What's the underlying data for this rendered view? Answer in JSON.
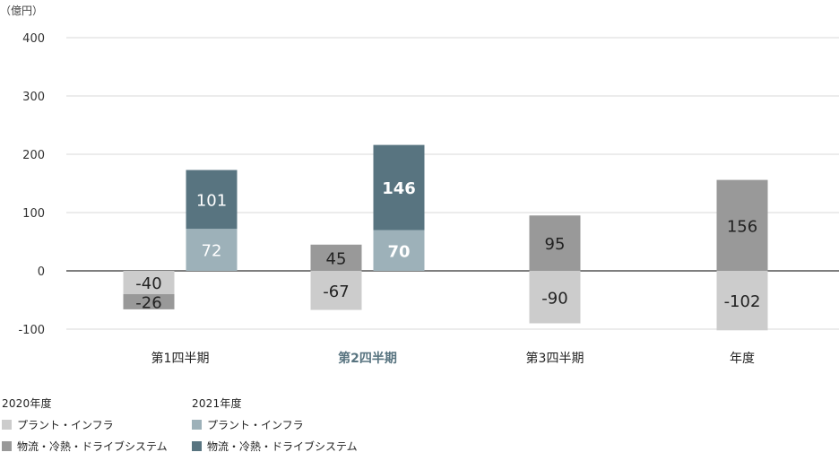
{
  "chart_data": {
    "type": "bar",
    "unit_label": "（億円）",
    "categories": [
      "第1四半期",
      "第2四半期",
      "第3四半期",
      "年度"
    ],
    "highlight_category": "第2四半期",
    "ylim": [
      -100,
      400
    ],
    "yticks": [
      -100,
      0,
      100,
      200,
      300,
      400
    ],
    "grid": true,
    "groups": [
      {
        "label": "2020年度",
        "series": [
          {
            "name": "プラント・インフラ",
            "color": "#cccccc",
            "values": [
              -40,
              -67,
              -90,
              -102
            ]
          },
          {
            "name": "物流・冷熱・ドライブシステム",
            "color": "#999999",
            "values": [
              -26,
              45,
              95,
              156
            ]
          }
        ]
      },
      {
        "label": "2021年度",
        "series": [
          {
            "name": "プラント・インフラ",
            "color": "#9db1b9",
            "values": [
              72,
              70,
              null,
              null
            ]
          },
          {
            "name": "物流・冷熱・ドライブシステム",
            "color": "#587480",
            "values": [
              101,
              146,
              null,
              null
            ]
          }
        ]
      }
    ],
    "bold_labels": {
      "group": 1,
      "category_index": 1
    },
    "legend_position": "bottom-left"
  },
  "colors": {
    "highlight_text": "#587480",
    "grid": "#d9d9d9",
    "baseline": "#333333"
  }
}
